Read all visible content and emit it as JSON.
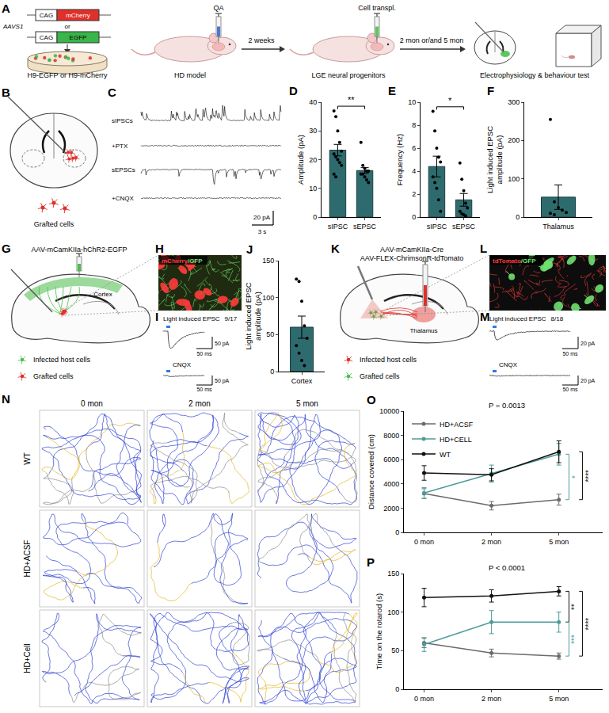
{
  "panels": {
    "A": {
      "letter": "A",
      "locus": "AAVS1",
      "constructs": [
        {
          "promoter": "CAG",
          "gene": "mCherry",
          "color": "#e0302a"
        },
        {
          "promoter": "CAG",
          "gene": "EGFP",
          "color": "#39b54a"
        }
      ],
      "or": "or",
      "cells": "H9-EGFP or H9-mCherry",
      "injection": "QA",
      "model": "HD model",
      "interval": "2 weeks",
      "transplant": "Cell transpl.",
      "progenitors": "LGE neural progenitors",
      "followup": "2 mon or/and 5 mon",
      "tests": "Electrophysiology & behaviour test"
    },
    "B": {
      "letter": "B",
      "legend": "Grafted cells"
    },
    "C": {
      "letter": "C",
      "traces": [
        "sIPSCs",
        "+PTX",
        "sEPSCs",
        "+CNQX"
      ],
      "scale_y": "20 pA",
      "scale_x": "3 s"
    },
    "G": {
      "letter": "G",
      "virus": "AAV-mCamKIIa-hChR2-EGFP",
      "region": "Cortex",
      "legend": [
        {
          "text": "Infected host cells",
          "color": "#4cbf4c"
        },
        {
          "text": "Grafted cells",
          "color": "#e0302a"
        }
      ]
    },
    "H": {
      "letter": "H",
      "label": [
        {
          "text": "mCherry",
          "color": "#ff3b3b"
        },
        {
          "text": "/GFP",
          "color": "#6ee06e"
        }
      ]
    },
    "I": {
      "letter": "I",
      "title": "Light induced EPSC",
      "count": "9/17",
      "scale_y": "50 pA",
      "scale_x": "50 ms",
      "blocker": "CNQX"
    },
    "K": {
      "letter": "K",
      "virus": [
        "AAV-mCamKIIa-Cre",
        "AAV-FLEX-ChrimsonR-tdTomato"
      ],
      "region": "Thalamus",
      "legend": [
        {
          "text": "Infected host cells",
          "color": "#e0302a"
        },
        {
          "text": "Grafted cells",
          "color": "#4cbf4c"
        }
      ]
    },
    "L": {
      "letter": "L",
      "label": [
        {
          "text": "tdTomato",
          "color": "#ff3b3b"
        },
        {
          "text": "/GFP",
          "color": "#6ee06e"
        }
      ]
    },
    "M": {
      "letter": "M",
      "title": "Light induced EPSC",
      "count": "8/18",
      "scale_y": "20 pA",
      "scale_x": "50 ms",
      "blocker": "CNQX"
    },
    "N": {
      "letter": "N",
      "columns": [
        "0 mon",
        "2 mon",
        "5 mon"
      ],
      "rows": [
        "WT",
        "HD+ACSF",
        "HD+Cell"
      ]
    }
  },
  "chart_data": [
    {
      "panel": "D",
      "type": "bar",
      "categories": [
        "sIPSC",
        "sEPSC"
      ],
      "values": [
        23.3,
        16.2
      ],
      "errors": [
        2.0,
        1.0
      ],
      "points": [
        [
          37,
          35,
          30,
          26,
          23,
          22,
          21,
          20,
          19,
          18,
          15,
          14
        ],
        [
          26,
          18,
          17,
          16,
          16,
          15,
          15,
          14,
          13,
          12
        ]
      ],
      "color": "#2e6b6e",
      "y_label": "Amplitude (pA)",
      "ylim": [
        0,
        40
      ],
      "yticks": [
        0,
        10,
        20,
        30,
        40
      ],
      "annotations": [
        {
          "text": "**",
          "between": [
            "sIPSC",
            "sEPSC"
          ]
        }
      ]
    },
    {
      "panel": "E",
      "type": "bar",
      "categories": [
        "sIPSC",
        "sEPSC"
      ],
      "values": [
        4.4,
        1.5
      ],
      "errors": [
        0.9,
        0.55
      ],
      "points": [
        [
          9.2,
          7.5,
          6,
          5.2,
          4.8,
          3.5,
          3,
          2.5,
          1.5,
          0.5
        ],
        [
          4.7,
          3.3,
          2.3,
          1.2,
          0.8,
          0.5,
          0.3,
          0.2,
          0.1
        ]
      ],
      "color": "#2e6b6e",
      "y_label": "Frequency (Hz)",
      "ylim": [
        0,
        10
      ],
      "yticks": [
        0,
        2,
        4,
        6,
        8,
        10
      ],
      "annotations": [
        {
          "text": "*",
          "between": [
            "sIPSC",
            "sEPSC"
          ]
        }
      ]
    },
    {
      "panel": "F",
      "type": "bar",
      "categories": [
        "Thalamus"
      ],
      "values": [
        52
      ],
      "errors": [
        32
      ],
      "points": [
        [
          255,
          40,
          25,
          18,
          12,
          10,
          6
        ]
      ],
      "color": "#2e6b6e",
      "y_label": "Light induced EPSC amplitude (pA)",
      "ylim": [
        0,
        300
      ],
      "yticks": [
        0,
        100,
        200,
        300
      ]
    },
    {
      "panel": "J",
      "type": "bar",
      "categories": [
        "Cortex"
      ],
      "values": [
        60
      ],
      "errors": [
        15
      ],
      "points": [
        [
          125,
          122,
          95,
          62,
          45,
          35,
          25,
          15,
          8
        ]
      ],
      "color": "#2e6b6e",
      "y_label": "Light induced EPSC amplitude (pA)",
      "ylim": [
        0,
        150
      ],
      "yticks": [
        0,
        50,
        100,
        150
      ]
    },
    {
      "panel": "O",
      "type": "line",
      "categories": [
        "0 mon",
        "2 mon",
        "5 mon"
      ],
      "y_label": "Distance covered (cm)",
      "ylim": [
        0,
        10000
      ],
      "yticks": [
        0,
        2000,
        4000,
        6000,
        8000,
        10000
      ],
      "marker": "circle",
      "legend": "top left",
      "series": [
        {
          "name": "HD+ACSF",
          "color": "#6b6b6b",
          "values": [
            3200,
            2200,
            2700
          ],
          "errors": [
            400,
            350,
            450
          ]
        },
        {
          "name": "HD+CELL",
          "color": "#4f9a9a",
          "values": [
            3250,
            4850,
            6450
          ],
          "errors": [
            450,
            700,
            900
          ]
        },
        {
          "name": "WT",
          "color": "#111111",
          "values": [
            4900,
            4750,
            6650
          ],
          "errors": [
            600,
            500,
            900
          ]
        }
      ],
      "annotations": [
        {
          "text": "P = 0.0013"
        },
        {
          "text": "*",
          "between": [
            "HD+CELL",
            "HD+ACSF"
          ],
          "at": "5 mon",
          "color": "#4f9a9a"
        },
        {
          "text": "****",
          "between": [
            "WT",
            "HD+ACSF"
          ],
          "at": "5 mon",
          "color": "#111111"
        }
      ]
    },
    {
      "panel": "P",
      "type": "line",
      "categories": [
        "0 mon",
        "2 mon",
        "5 mon"
      ],
      "y_label": "Time on the rotarod (s)",
      "ylim": [
        0,
        150
      ],
      "yticks": [
        0,
        50,
        100,
        150
      ],
      "marker": "circle",
      "series": [
        {
          "name": "HD+ACSF",
          "color": "#6b6b6b",
          "values": [
            60,
            47,
            43
          ],
          "errors": [
            6,
            5,
            4
          ]
        },
        {
          "name": "HD+CELL",
          "color": "#4f9a9a",
          "values": [
            58,
            87,
            87
          ],
          "errors": [
            9,
            15,
            13
          ]
        },
        {
          "name": "WT",
          "color": "#111111",
          "values": [
            119,
            121,
            127
          ],
          "errors": [
            12,
            8,
            6
          ]
        }
      ],
      "annotations": [
        {
          "text": "P < 0.0001"
        },
        {
          "text": "**",
          "between": [
            "WT",
            "HD+CELL"
          ],
          "at": "5 mon",
          "color": "#111111"
        },
        {
          "text": "***",
          "between": [
            "HD+CELL",
            "HD+ACSF"
          ],
          "at": "5 mon",
          "color": "#4f9a9a"
        },
        {
          "text": "****",
          "between": [
            "WT",
            "HD+ACSF"
          ],
          "at": "5 mon",
          "color": "#111111"
        }
      ]
    }
  ]
}
